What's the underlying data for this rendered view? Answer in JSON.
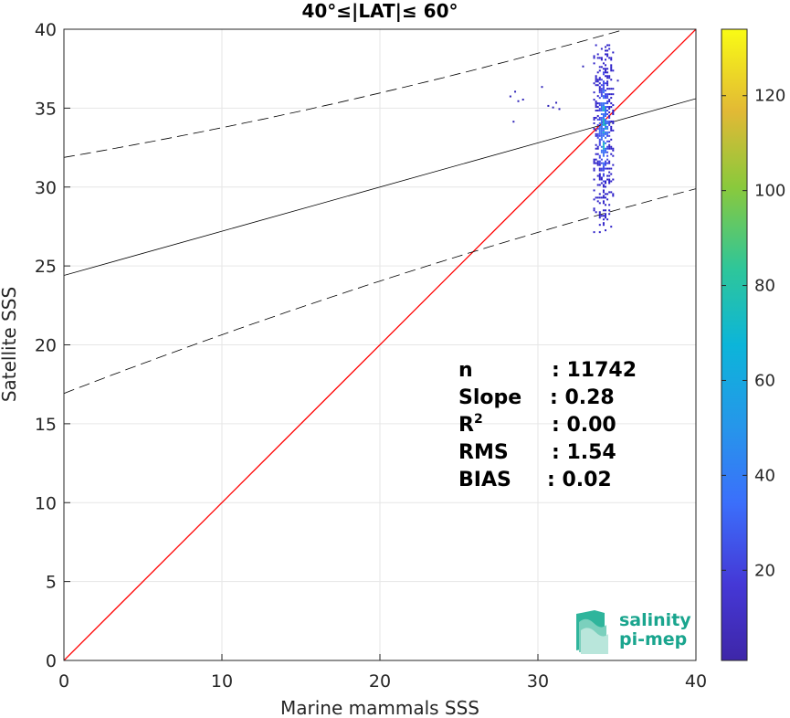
{
  "chart_data": {
    "type": "scatter",
    "title": "40°≤|LAT|≤ 60°",
    "xlabel": "Marine mammals SSS",
    "ylabel": "Satellite SSS",
    "xlim": [
      0,
      40
    ],
    "ylim": [
      0,
      40
    ],
    "xticks": [
      "0",
      "10",
      "20",
      "30",
      "40"
    ],
    "yticks": [
      "0",
      "5",
      "10",
      "15",
      "20",
      "25",
      "30",
      "35",
      "40"
    ],
    "grid": true,
    "identity_line": {
      "color": "#ff0000",
      "from": [
        0,
        0
      ],
      "to": [
        40,
        40
      ]
    },
    "regression": {
      "slope": 0.28,
      "intercept": 24.4,
      "band": 5.65,
      "color": "#000000"
    },
    "density_cloud": {
      "main_cluster": {
        "x_center": 34.1,
        "x_halfwidth": 0.6,
        "y_min": 27.2,
        "y_max": 39.2,
        "y_peak": 33.8
      },
      "outliers": [
        {
          "x": 28.2,
          "y": 35.8
        },
        {
          "x": 28.5,
          "y": 36.1
        },
        {
          "x": 28.7,
          "y": 35.5
        },
        {
          "x": 28.4,
          "y": 34.2
        },
        {
          "x": 29.0,
          "y": 35.6
        },
        {
          "x": 30.6,
          "y": 35.2
        },
        {
          "x": 30.9,
          "y": 35.1
        },
        {
          "x": 31.1,
          "y": 35.4
        },
        {
          "x": 31.3,
          "y": 35.0
        },
        {
          "x": 30.2,
          "y": 36.4
        },
        {
          "x": 32.8,
          "y": 37.7
        },
        {
          "x": 35.0,
          "y": 36.8
        }
      ]
    },
    "colorbar": {
      "min": 1,
      "max": 134,
      "ticks": [
        "20",
        "40",
        "60",
        "80",
        "100",
        "120"
      ],
      "colormap": "parula"
    },
    "stats": [
      {
        "label": "n",
        "value": ": 11742"
      },
      {
        "label": "Slope",
        "value": ": 0.28"
      },
      {
        "label": "R",
        "sup": "2",
        "value": ": 0.00"
      },
      {
        "label": "RMS",
        "value": ": 1.54"
      },
      {
        "label": "BIAS",
        "value": ": 0.02"
      }
    ]
  },
  "logo": {
    "line1": "salinity",
    "line2": "pi-mep"
  }
}
